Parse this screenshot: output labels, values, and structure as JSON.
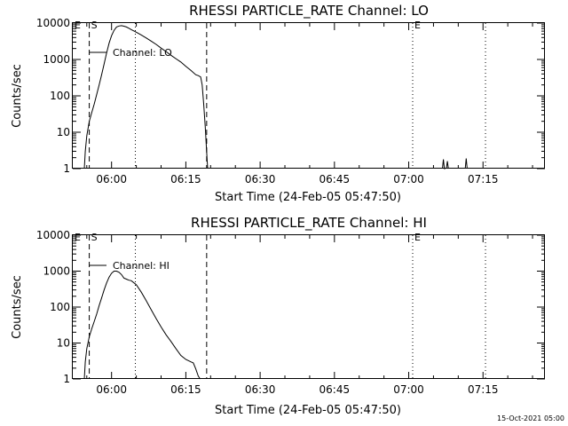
{
  "colors": {
    "background": "#ffffff",
    "foreground": "#000000"
  },
  "footer": {
    "timestamp": "15-Oct-2021 05:00"
  },
  "chart_data": [
    {
      "type": "line",
      "title": "RHESSI PARTICLE_RATE Channel: LO",
      "xlabel": "Start Time (24-Feb-05 05:47:50)",
      "ylabel": "Counts/sec",
      "yscale": "log",
      "xlim_minutes": [
        -7.83,
        87.5
      ],
      "ylim": [
        1,
        10000
      ],
      "xtick_minutes": [
        0,
        15,
        30,
        45,
        60,
        75
      ],
      "xtick_labels": [
        "06:00",
        "06:15",
        "06:30",
        "06:45",
        "07:00",
        "07:15"
      ],
      "ytick_values": [
        1,
        10,
        100,
        1000,
        10000
      ],
      "ytick_labels": [
        "1",
        "10",
        "100",
        "1000",
        "10000"
      ],
      "legend": {
        "label": "Channel: LO",
        "position": "top-left"
      },
      "markers": [
        {
          "label": "E",
          "minute": -7.83,
          "style": "none"
        },
        {
          "label": "S",
          "minute": -4.5,
          "style": "dashed"
        },
        {
          "label": "",
          "minute": 4.8,
          "style": "dotted"
        },
        {
          "label": "",
          "minute": 19.2,
          "style": "dashed"
        },
        {
          "label": "E",
          "minute": 60.8,
          "style": "dotted"
        },
        {
          "label": "",
          "minute": 75.5,
          "style": "dotted"
        }
      ],
      "series": [
        {
          "name": "Channel: LO",
          "segments": [
            {
              "minutes": [
                -5.5,
                -5.3,
                -5.0,
                -4.5,
                -4.0,
                -3.5,
                -3.0,
                -2.5,
                -2.0,
                -1.5,
                -1.0,
                -0.5,
                0.0,
                0.5,
                1.0,
                1.5,
                2.0,
                2.5,
                3.0,
                3.5,
                4.0,
                5.0,
                6.0,
                7.0,
                8.0,
                9.0,
                10.0,
                11.0,
                12.0,
                13.0,
                14.0,
                15.0,
                16.0,
                17.0,
                17.5,
                18.0,
                18.3,
                18.6,
                18.9,
                19.2,
                19.4
              ],
              "values": [
                1,
                3,
                8,
                20,
                35,
                60,
                110,
                200,
                380,
                750,
                1500,
                2800,
                4500,
                6300,
                7800,
                8300,
                8500,
                8200,
                7800,
                7200,
                6600,
                5600,
                4700,
                3900,
                3200,
                2600,
                2050,
                1650,
                1300,
                1050,
                850,
                650,
                500,
                380,
                360,
                330,
                200,
                60,
                15,
                3,
                1
              ]
            },
            {
              "minutes": [
                66.8,
                67.0,
                67.2,
                67.4
              ],
              "values": [
                1,
                1.8,
                1,
                1
              ]
            },
            {
              "minutes": [
                67.6,
                67.8,
                68.0
              ],
              "values": [
                1,
                1.6,
                1
              ]
            },
            {
              "minutes": [
                71.4,
                71.6,
                71.8
              ],
              "values": [
                1,
                1.9,
                1
              ]
            }
          ]
        }
      ]
    },
    {
      "type": "line",
      "title": "RHESSI PARTICLE_RATE Channel: HI",
      "xlabel": "Start Time (24-Feb-05 05:47:50)",
      "ylabel": "Counts/sec",
      "yscale": "log",
      "xlim_minutes": [
        -7.83,
        87.5
      ],
      "ylim": [
        1,
        10000
      ],
      "xtick_minutes": [
        0,
        15,
        30,
        45,
        60,
        75
      ],
      "xtick_labels": [
        "06:00",
        "06:15",
        "06:30",
        "06:45",
        "07:00",
        "07:15"
      ],
      "ytick_values": [
        1,
        10,
        100,
        1000,
        10000
      ],
      "ytick_labels": [
        "1",
        "10",
        "100",
        "1000",
        "10000"
      ],
      "legend": {
        "label": "Channel: HI",
        "position": "top-left"
      },
      "markers": [
        {
          "label": "E",
          "minute": -7.83,
          "style": "none"
        },
        {
          "label": "S",
          "minute": -4.5,
          "style": "dashed"
        },
        {
          "label": "",
          "minute": 4.8,
          "style": "dotted"
        },
        {
          "label": "",
          "minute": 19.2,
          "style": "dashed"
        },
        {
          "label": "E",
          "minute": 60.8,
          "style": "dotted"
        },
        {
          "label": "",
          "minute": 75.5,
          "style": "dotted"
        }
      ],
      "series": [
        {
          "name": "Channel: HI",
          "segments": [
            {
              "minutes": [
                -5.5,
                -5.3,
                -5.0,
                -4.5,
                -4.0,
                -3.5,
                -3.0,
                -2.5,
                -2.0,
                -1.5,
                -1.0,
                -0.5,
                0.0,
                0.5,
                1.0,
                1.5,
                2.0,
                2.5,
                3.0,
                3.5,
                4.0,
                5.0,
                6.0,
                7.0,
                8.0,
                9.0,
                10.0,
                11.0,
                12.0,
                13.0,
                14.0,
                15.0,
                16.0,
                16.5,
                17.0,
                17.5,
                17.9
              ],
              "values": [
                1,
                3,
                7,
                15,
                25,
                40,
                65,
                110,
                180,
                300,
                470,
                680,
                870,
                1000,
                1000,
                930,
                800,
                640,
                600,
                560,
                540,
                420,
                260,
                150,
                85,
                48,
                28,
                17,
                11,
                7,
                4.5,
                3.5,
                3,
                2.8,
                1.9,
                1.2,
                1
              ]
            }
          ]
        }
      ]
    }
  ]
}
